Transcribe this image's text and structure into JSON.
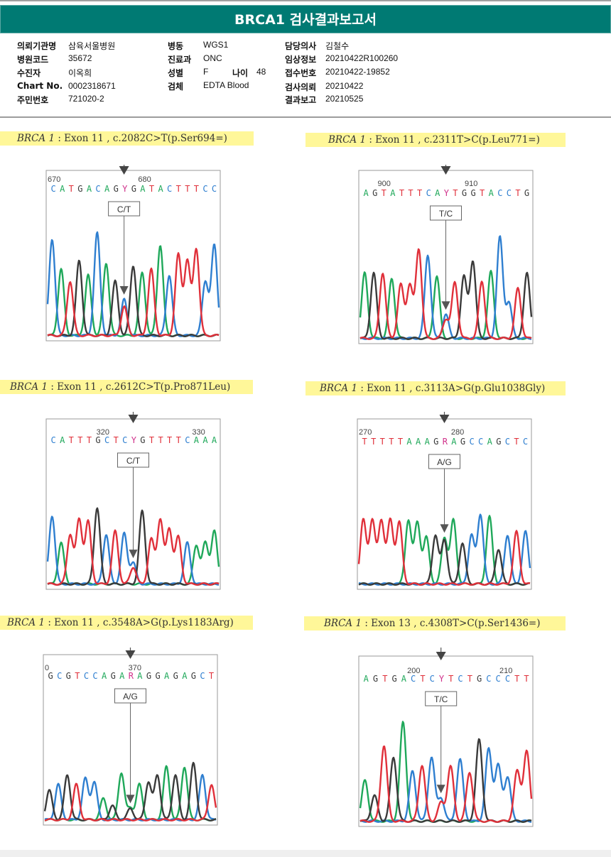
{
  "report": {
    "title": "BRCA1 검사결과보고서",
    "accent_color": "#007a73"
  },
  "patient_info": {
    "col1": [
      {
        "label": "의뢰기관명",
        "value": "삼육서울병원"
      },
      {
        "label": "병원코드",
        "value": "35672"
      },
      {
        "label": "수진자",
        "value": "이옥희"
      },
      {
        "label": "Chart No.",
        "value": "0002318671"
      },
      {
        "label": "주민번호",
        "value": "721020-2"
      }
    ],
    "col2": [
      {
        "label": "병동",
        "value": "WGS1"
      },
      {
        "label": "진료과",
        "value": "ONC"
      },
      {
        "label": "성별",
        "value": "F"
      },
      {
        "label": "검체",
        "value": "EDTA Blood"
      }
    ],
    "age": {
      "label": "나이",
      "value": "48"
    },
    "col3": [
      {
        "label": "담당의사",
        "value": "김철수"
      },
      {
        "label": "임상정보",
        "value": "20210422R100260"
      },
      {
        "label": "접수번호",
        "value": "20210422-19852"
      },
      {
        "label": "검사의뢰",
        "value": "20210422"
      },
      {
        "label": "결과보고",
        "value": "20210525"
      }
    ]
  },
  "base_colors": {
    "A": "#1fa85a",
    "C": "#2f7fd0",
    "G": "#3a3a3a",
    "T": "#e0303a",
    "Y": "#d0308a",
    "R": "#d0308a"
  },
  "variants": [
    {
      "gene": "BRCA 1",
      "desc": ": Exon 11 , c.2082C>T(p.Ser694=)",
      "call": "C/T",
      "ticks": [
        "670",
        "680"
      ],
      "sequence": "CATGACAGYGATACTTTCC",
      "peaks": [
        [
          "C",
          0.8
        ],
        [
          "A",
          0.55
        ],
        [
          "T",
          0.45
        ],
        [
          "G",
          0.62
        ],
        [
          "A",
          0.5
        ],
        [
          "C",
          0.85
        ],
        [
          "A",
          0.6
        ],
        [
          "G",
          0.45
        ],
        [
          "Y",
          0.3
        ],
        [
          "G",
          0.58
        ],
        [
          "A",
          0.52
        ],
        [
          "T",
          0.55
        ],
        [
          "A",
          0.75
        ],
        [
          "C",
          0.5
        ],
        [
          "T",
          0.67
        ],
        [
          "T",
          0.62
        ],
        [
          "T",
          0.72
        ],
        [
          "C",
          0.45
        ],
        [
          "C",
          0.75
        ]
      ]
    },
    {
      "gene": "BRCA 1",
      "desc": ": Exon 11 , c.2311T>C(p.Leu771=)",
      "call": "T/C",
      "ticks": [
        "900",
        "910"
      ],
      "sequence": "AGTATTTCAYTGGTACCTG",
      "peaks": [
        [
          "A",
          0.55
        ],
        [
          "G",
          0.55
        ],
        [
          "T",
          0.55
        ],
        [
          "A",
          0.5
        ],
        [
          "T",
          0.45
        ],
        [
          "T",
          0.45
        ],
        [
          "T",
          0.75
        ],
        [
          "C",
          0.7
        ],
        [
          "A",
          0.52
        ],
        [
          "Y",
          0.2
        ],
        [
          "T",
          0.47
        ],
        [
          "G",
          0.52
        ],
        [
          "G",
          0.65
        ],
        [
          "T",
          0.48
        ],
        [
          "A",
          0.56
        ],
        [
          "C",
          0.85
        ],
        [
          "C",
          0.3
        ],
        [
          "T",
          0.42
        ],
        [
          "G",
          0.55
        ]
      ]
    },
    {
      "gene": "BRCA 1",
      "desc": ": Exon 11 , c.2612C>T(p.Pro871Leu)",
      "call": "C/T",
      "ticks": [
        "320",
        "330"
      ],
      "sequence": "CATTTGCTCYGTTTTCAAA",
      "peaks": [
        [
          "C",
          0.58
        ],
        [
          "A",
          0.35
        ],
        [
          "T",
          0.42
        ],
        [
          "T",
          0.55
        ],
        [
          "T",
          0.53
        ],
        [
          "G",
          0.65
        ],
        [
          "C",
          0.42
        ],
        [
          "T",
          0.45
        ],
        [
          "C",
          0.43
        ],
        [
          "Y",
          0.18
        ],
        [
          "G",
          0.62
        ],
        [
          "T",
          0.38
        ],
        [
          "T",
          0.55
        ],
        [
          "T",
          0.47
        ],
        [
          "T",
          0.4
        ],
        [
          "C",
          0.35
        ],
        [
          "A",
          0.33
        ],
        [
          "A",
          0.35
        ],
        [
          "A",
          0.45
        ]
      ]
    },
    {
      "gene": "BRCA 1",
      "desc": ": Exon 11 , c.3113A>G(p.Glu1038Gly)",
      "call": "A/G",
      "ticks": [
        "270",
        "280"
      ],
      "sequence": "TTTTTAAAGRAGCCAGCTC",
      "peaks": [
        [
          "T",
          0.55
        ],
        [
          "T",
          0.55
        ],
        [
          "T",
          0.55
        ],
        [
          "T",
          0.55
        ],
        [
          "T",
          0.53
        ],
        [
          "A",
          0.55
        ],
        [
          "A",
          0.53
        ],
        [
          "A",
          0.4
        ],
        [
          "G",
          0.42
        ],
        [
          "R",
          0.4
        ],
        [
          "A",
          0.55
        ],
        [
          "G",
          0.35
        ],
        [
          "C",
          0.42
        ],
        [
          "C",
          0.6
        ],
        [
          "A",
          0.58
        ],
        [
          "G",
          0.3
        ],
        [
          "C",
          0.42
        ],
        [
          "T",
          0.45
        ],
        [
          "C",
          0.45
        ]
      ]
    },
    {
      "gene": "BRCA 1",
      "desc": ": Exon 11 , c.3548A>G(p.Lys1183Arg)",
      "call": "A/G",
      "ticks": [
        "0",
        "370"
      ],
      "sequence": "GCGTCCAGARAGGAGAGCT",
      "peaks": [
        [
          "G",
          0.25
        ],
        [
          "C",
          0.3
        ],
        [
          "G",
          0.38
        ],
        [
          "T",
          0.3
        ],
        [
          "C",
          0.35
        ],
        [
          "C",
          0.32
        ],
        [
          "A",
          0.18
        ],
        [
          "G",
          0.12
        ],
        [
          "A",
          0.4
        ],
        [
          "R",
          0.1
        ],
        [
          "A",
          0.3
        ],
        [
          "G",
          0.32
        ],
        [
          "G",
          0.38
        ],
        [
          "A",
          0.45
        ],
        [
          "G",
          0.38
        ],
        [
          "A",
          0.45
        ],
        [
          "G",
          0.48
        ],
        [
          "C",
          0.38
        ],
        [
          "T",
          0.3
        ]
      ]
    },
    {
      "gene": "BRCA 1",
      "desc": ": Exon 13 , c.4308T>C(p.Ser1436=)",
      "call": "T/C",
      "ticks": [
        "200",
        "210"
      ],
      "sequence": "AGTGACTCYTCTGCCCTT",
      "peaks": [
        [
          "A",
          0.35
        ],
        [
          "G",
          0.22
        ],
        [
          "T",
          0.65
        ],
        [
          "G",
          0.55
        ],
        [
          "A",
          0.85
        ],
        [
          "C",
          0.43
        ],
        [
          "T",
          0.48
        ],
        [
          "C",
          0.55
        ],
        [
          "Y",
          0.2
        ],
        [
          "T",
          0.47
        ],
        [
          "C",
          0.53
        ],
        [
          "T",
          0.42
        ],
        [
          "G",
          0.7
        ],
        [
          "C",
          0.62
        ],
        [
          "C",
          0.48
        ],
        [
          "C",
          0.38
        ],
        [
          "T",
          0.43
        ],
        [
          "T",
          0.6
        ]
      ]
    }
  ]
}
